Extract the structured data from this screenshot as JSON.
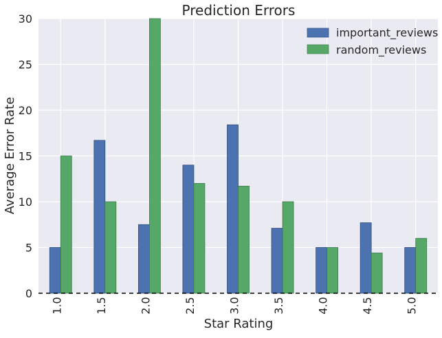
{
  "chart_data": {
    "type": "bar",
    "title": "Prediction Errors",
    "xlabel": "Star Rating",
    "ylabel": "Average Error Rate",
    "categories": [
      "1.0",
      "1.5",
      "2.0",
      "2.5",
      "3.0",
      "3.5",
      "4.0",
      "4.5",
      "5.0"
    ],
    "series": [
      {
        "name": "important_reviews",
        "color": "#4C72B0",
        "values": [
          5.0,
          16.7,
          7.5,
          14.0,
          18.4,
          7.1,
          5.0,
          7.7,
          5.0
        ]
      },
      {
        "name": "random_reviews",
        "color": "#55A868",
        "values": [
          15.0,
          10.0,
          30.0,
          12.0,
          11.7,
          10.0,
          5.0,
          4.4,
          6.0
        ]
      }
    ],
    "ylim": [
      0,
      30
    ],
    "yticks": [
      "0",
      "5",
      "10",
      "15",
      "20",
      "25",
      "30"
    ],
    "grid": true,
    "legend_position": "top-right",
    "baseline_style": "dashed black line at y=0",
    "background_color": "#EAEAF2",
    "grid_color": "#FFFFFF"
  }
}
